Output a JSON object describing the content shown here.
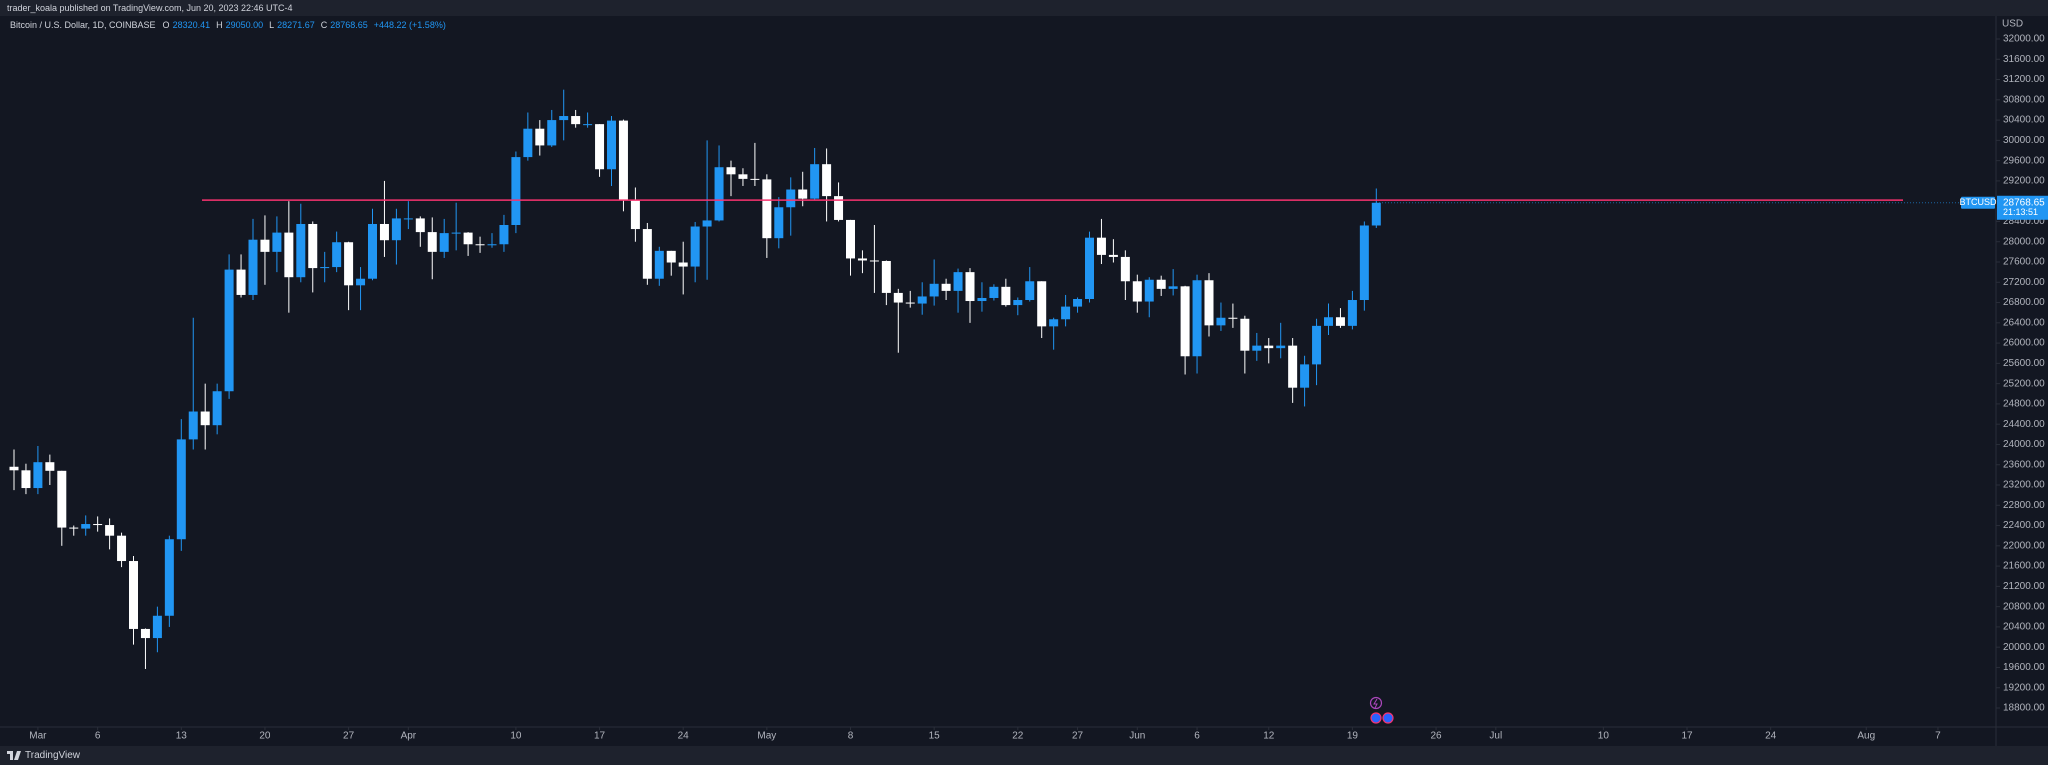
{
  "publish_line": "trader_koala published on TradingView.com, Jun 20, 2023 22:46 UTC-4",
  "brand": "TradingView",
  "chart_data": {
    "type": "candlestick",
    "title": "Bitcoin / U.S. Dollar, 1D, COINBASE",
    "ohlc_legend": [
      {
        "key": "O",
        "text": "28320.41"
      },
      {
        "key": "H",
        "text": "29050.00"
      },
      {
        "key": "L",
        "text": "28271.67"
      },
      {
        "key": "C",
        "text": "28768.65"
      }
    ],
    "change": "+448.22 (+1.58%)",
    "currency": "USD",
    "symbol_label": "BTCUSD",
    "countdown": "21:13:51",
    "up_color": "#2196f3",
    "down_color": "#ffffff",
    "level": 28820,
    "level_color": "#f7336f",
    "x": [
      "2023-02-27",
      "2023-02-28",
      "2023-03-01",
      "2023-03-02",
      "2023-03-03",
      "2023-03-04",
      "2023-03-05",
      "2023-03-06",
      "2023-03-07",
      "2023-03-08",
      "2023-03-09",
      "2023-03-10",
      "2023-03-11",
      "2023-03-12",
      "2023-03-13",
      "2023-03-14",
      "2023-03-15",
      "2023-03-16",
      "2023-03-17",
      "2023-03-18",
      "2023-03-19",
      "2023-03-20",
      "2023-03-21",
      "2023-03-22",
      "2023-03-23",
      "2023-03-24",
      "2023-03-25",
      "2023-03-26",
      "2023-03-27",
      "2023-03-28",
      "2023-03-29",
      "2023-03-30",
      "2023-03-31",
      "2023-04-01",
      "2023-04-02",
      "2023-04-03",
      "2023-04-04",
      "2023-04-05",
      "2023-04-06",
      "2023-04-07",
      "2023-04-08",
      "2023-04-09",
      "2023-04-10",
      "2023-04-11",
      "2023-04-12",
      "2023-04-13",
      "2023-04-14",
      "2023-04-15",
      "2023-04-16",
      "2023-04-17",
      "2023-04-18",
      "2023-04-19",
      "2023-04-20",
      "2023-04-21",
      "2023-04-22",
      "2023-04-23",
      "2023-04-24",
      "2023-04-25",
      "2023-04-26",
      "2023-04-27",
      "2023-04-28",
      "2023-04-29",
      "2023-04-30",
      "2023-05-01",
      "2023-05-02",
      "2023-05-03",
      "2023-05-04",
      "2023-05-05",
      "2023-05-06",
      "2023-05-07",
      "2023-05-08",
      "2023-05-09",
      "2023-05-10",
      "2023-05-11",
      "2023-05-12",
      "2023-05-13",
      "2023-05-14",
      "2023-05-15",
      "2023-05-16",
      "2023-05-17",
      "2023-05-18",
      "2023-05-19",
      "2023-05-20",
      "2023-05-21",
      "2023-05-22",
      "2023-05-23",
      "2023-05-24",
      "2023-05-25",
      "2023-05-26",
      "2023-05-27",
      "2023-05-28",
      "2023-05-29",
      "2023-05-30",
      "2023-05-31",
      "2023-06-01",
      "2023-06-02",
      "2023-06-03",
      "2023-06-04",
      "2023-06-05",
      "2023-06-06",
      "2023-06-07",
      "2023-06-08",
      "2023-06-09",
      "2023-06-10",
      "2023-06-11",
      "2023-06-12",
      "2023-06-13",
      "2023-06-14",
      "2023-06-15",
      "2023-06-16",
      "2023-06-17",
      "2023-06-18",
      "2023-06-19",
      "2023-06-20",
      "2023-06-21"
    ],
    "open": [
      23560,
      23490,
      23140,
      23650,
      23480,
      22360,
      22340,
      22430,
      22410,
      22200,
      21700,
      20360,
      20180,
      20620,
      22130,
      24100,
      24650,
      24380,
      25050,
      27450,
      26950,
      28040,
      27800,
      28180,
      27300,
      28350,
      27480,
      27500,
      27990,
      27140,
      27270,
      28350,
      28030,
      28460,
      28460,
      28190,
      27800,
      28170,
      28180,
      27950,
      27930,
      27950,
      28330,
      29670,
      30230,
      29900,
      30400,
      30480,
      30320,
      30320,
      29430,
      30390,
      28820,
      28250,
      27270,
      27820,
      27590,
      27510,
      28300,
      28420,
      29470,
      29330,
      29240,
      29230,
      28070,
      28680,
      29030,
      28850,
      29530,
      28900,
      28430,
      27670,
      27630,
      27620,
      26990,
      26800,
      26780,
      26920,
      27170,
      27030,
      27400,
      26830,
      26890,
      27110,
      26750,
      26850,
      27220,
      26330,
      26470,
      26720,
      26870,
      28080,
      27740,
      27700,
      27220,
      26820,
      27250,
      27070,
      27120,
      25740,
      27240,
      26350,
      26500,
      26480,
      25850,
      25950,
      25900,
      25950,
      25120,
      25580,
      26340,
      26510,
      26340,
      26850,
      28320.41
    ],
    "high": [
      23900,
      23620,
      23970,
      23800,
      23480,
      22400,
      22600,
      22580,
      22540,
      22260,
      21800,
      20370,
      20800,
      22200,
      24500,
      26500,
      25200,
      25200,
      27750,
      27750,
      28450,
      28520,
      28500,
      28800,
      28750,
      28400,
      27800,
      28200,
      28000,
      27500,
      28650,
      29200,
      28650,
      28800,
      28500,
      28480,
      28450,
      28770,
      28190,
      28100,
      28170,
      28530,
      29780,
      30550,
      30400,
      30600,
      31000,
      30600,
      30550,
      30320,
      30480,
      30410,
      29070,
      28370,
      27900,
      27820,
      28000,
      28390,
      30000,
      29900,
      29600,
      29450,
      29950,
      29330,
      28880,
      29270,
      29380,
      29850,
      29840,
      29170,
      28430,
      27830,
      28330,
      27630,
      27070,
      27030,
      27200,
      27650,
      27270,
      27470,
      27480,
      27200,
      27160,
      27270,
      26900,
      27500,
      27220,
      26500,
      26950,
      26900,
      28200,
      28450,
      28050,
      27830,
      27350,
      27300,
      27330,
      27460,
      27130,
      27350,
      27380,
      26800,
      26780,
      26540,
      26200,
      26100,
      26400,
      26100,
      25750,
      26480,
      26780,
      26690,
      27030,
      28400,
      29050
    ],
    "low": [
      23100,
      23020,
      23020,
      23200,
      22000,
      22200,
      22200,
      22280,
      21930,
      21580,
      20050,
      19570,
      19900,
      20400,
      21900,
      23900,
      23900,
      24200,
      24900,
      26900,
      26850,
      27150,
      27400,
      26600,
      27200,
      27000,
      27200,
      27400,
      26650,
      26650,
      27240,
      27700,
      27550,
      28250,
      27900,
      27260,
      27680,
      27830,
      27720,
      27780,
      27880,
      27800,
      28170,
      29600,
      29700,
      29870,
      30000,
      30250,
      30250,
      29280,
      29100,
      28600,
      28000,
      27150,
      27130,
      27330,
      26960,
      27200,
      27250,
      28400,
      28900,
      29100,
      29100,
      27680,
      27870,
      28120,
      28700,
      28830,
      28400,
      28400,
      27330,
      27380,
      26990,
      26750,
      25810,
      26700,
      26560,
      26740,
      26850,
      26600,
      26400,
      26620,
      26840,
      26720,
      26550,
      26820,
      26100,
      25870,
      26330,
      26600,
      26800,
      27560,
      27590,
      26850,
      26600,
      26510,
      26930,
      26940,
      25380,
      25400,
      26130,
      26240,
      26300,
      25400,
      25650,
      25600,
      25700,
      24820,
      24750,
      25170,
      26160,
      26300,
      26270,
      26640,
      28271.67
    ],
    "close": [
      23490,
      23140,
      23650,
      23480,
      22360,
      22340,
      22430,
      22410,
      22200,
      21700,
      20360,
      20180,
      20620,
      22130,
      24100,
      24650,
      24380,
      25050,
      27450,
      26950,
      28040,
      27800,
      28180,
      27300,
      28350,
      27480,
      27500,
      27990,
      27140,
      27270,
      28350,
      28030,
      28460,
      28460,
      28190,
      27800,
      28170,
      28180,
      27950,
      27930,
      27950,
      28330,
      29670,
      30230,
      29900,
      30400,
      30480,
      30320,
      30320,
      29430,
      30390,
      28820,
      28250,
      27270,
      27820,
      27590,
      27510,
      28300,
      28420,
      29470,
      29330,
      29240,
      29230,
      28070,
      28680,
      29030,
      28850,
      29530,
      28900,
      28430,
      27670,
      27630,
      27620,
      26990,
      26800,
      26780,
      26920,
      27170,
      27030,
      27400,
      26830,
      26890,
      27110,
      26750,
      26850,
      27220,
      26330,
      26470,
      26720,
      26870,
      28080,
      27740,
      27700,
      27220,
      26820,
      27250,
      27070,
      27120,
      25740,
      27240,
      26350,
      26500,
      26480,
      25850,
      25950,
      25900,
      25950,
      25120,
      25580,
      26340,
      26510,
      26340,
      26850,
      28320.43,
      28768.65
    ],
    "ylim": [
      18445,
      32434
    ],
    "yticks": [
      {
        "value": 18800,
        "label": "18800.00"
      },
      {
        "value": 19200,
        "label": "19200.00"
      },
      {
        "value": 19600,
        "label": "19600.00"
      },
      {
        "value": 20000,
        "label": "20000.00"
      },
      {
        "value": 20400,
        "label": "20400.00"
      },
      {
        "value": 20800,
        "label": "20800.00"
      },
      {
        "value": 21200,
        "label": "21200.00"
      },
      {
        "value": 21600,
        "label": "21600.00"
      },
      {
        "value": 22000,
        "label": "22000.00"
      },
      {
        "value": 22400,
        "label": "22400.00"
      },
      {
        "value": 22800,
        "label": "22800.00"
      },
      {
        "value": 23200,
        "label": "23200.00"
      },
      {
        "value": 23600,
        "label": "23600.00"
      },
      {
        "value": 24000,
        "label": "24000.00"
      },
      {
        "value": 24400,
        "label": "24400.00"
      },
      {
        "value": 24800,
        "label": "24800.00"
      },
      {
        "value": 25200,
        "label": "25200.00"
      },
      {
        "value": 25600,
        "label": "25600.00"
      },
      {
        "value": 26000,
        "label": "26000.00"
      },
      {
        "value": 26400,
        "label": "26400.00"
      },
      {
        "value": 26800,
        "label": "26800.00"
      },
      {
        "value": 27200,
        "label": "27200.00"
      },
      {
        "value": 27600,
        "label": "27600.00"
      },
      {
        "value": 28000,
        "label": "28000.00"
      },
      {
        "value": 28400,
        "label": "28400.00"
      },
      {
        "value": 28800,
        "label": "28800.00"
      },
      {
        "value": 29200,
        "label": "29200.00"
      },
      {
        "value": 29600,
        "label": "29600.00"
      },
      {
        "value": 30000,
        "label": "30000.00"
      },
      {
        "value": 30400,
        "label": "30400.00"
      },
      {
        "value": 30800,
        "label": "30800.00"
      },
      {
        "value": 31200,
        "label": "31200.00"
      },
      {
        "value": 31600,
        "label": "31600.00"
      },
      {
        "value": 32000,
        "label": "32000.00"
      }
    ],
    "xticks": [
      {
        "value": "2023-03-01",
        "label": "Mar"
      },
      {
        "value": "2023-03-06",
        "label": "6"
      },
      {
        "value": "2023-03-13",
        "label": "13"
      },
      {
        "value": "2023-03-20",
        "label": "20"
      },
      {
        "value": "2023-03-27",
        "label": "27"
      },
      {
        "value": "2023-04-01",
        "label": "Apr"
      },
      {
        "value": "2023-04-10",
        "label": "10"
      },
      {
        "value": "2023-04-17",
        "label": "17"
      },
      {
        "value": "2023-04-24",
        "label": "24"
      },
      {
        "value": "2023-05-01",
        "label": "May"
      },
      {
        "value": "2023-05-08",
        "label": "8"
      },
      {
        "value": "2023-05-15",
        "label": "15"
      },
      {
        "value": "2023-05-22",
        "label": "22"
      },
      {
        "value": "2023-05-27",
        "label": "27"
      },
      {
        "value": "2023-06-01",
        "label": "Jun"
      },
      {
        "value": "2023-06-06",
        "label": "6"
      },
      {
        "value": "2023-06-12",
        "label": "12"
      },
      {
        "value": "2023-06-19",
        "label": "19"
      },
      {
        "value": "2023-06-26",
        "label": "26"
      },
      {
        "value": "2023-07-01",
        "label": "Jul"
      },
      {
        "value": "2023-07-10",
        "label": "10"
      },
      {
        "value": "2023-07-17",
        "label": "17"
      },
      {
        "value": "2023-07-24",
        "label": "24"
      },
      {
        "value": "2023-08-01",
        "label": "Aug"
      },
      {
        "value": "2023-08-07",
        "label": "7"
      }
    ]
  }
}
